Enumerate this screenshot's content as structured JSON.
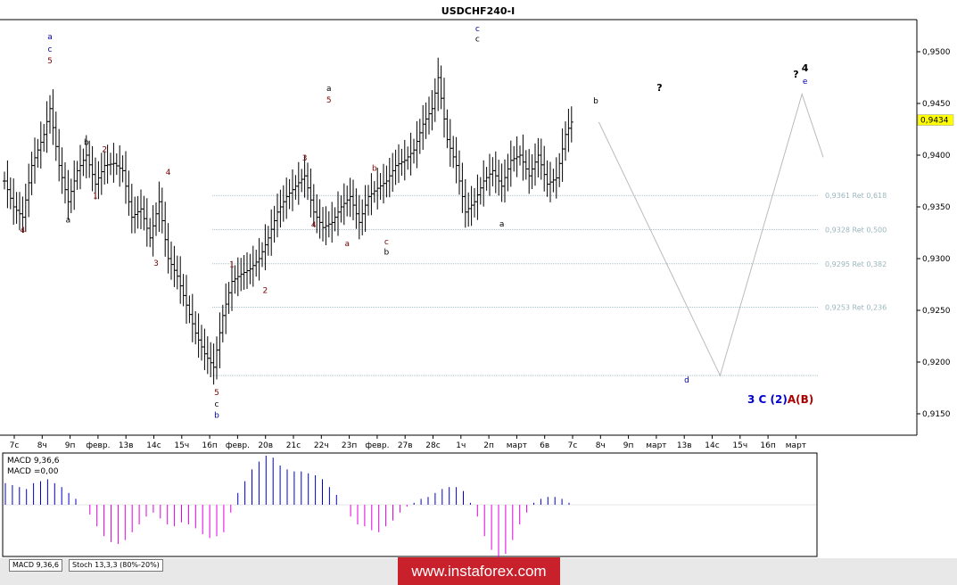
{
  "chart_data": {
    "type": "candlestick",
    "title": "USDCHF240-I",
    "price_axis": {
      "range": [
        0.9118,
        0.9534
      ],
      "ticks": [
        "0,9500",
        "0,9450",
        "0,9400",
        "0,9350",
        "0,9300",
        "0,9250",
        "0,9200",
        "0,9150"
      ],
      "tick_values": [
        0.95,
        0.945,
        0.94,
        0.935,
        0.93,
        0.925,
        0.92,
        0.915
      ],
      "current_price_label": "0,9434",
      "current_price": 0.9434
    },
    "time_axis": {
      "labels": [
        "7с",
        "8ч",
        "9п",
        "февр.",
        "13в",
        "14с",
        "15ч",
        "16п",
        "февр.",
        "20в",
        "21с",
        "22ч",
        "23п",
        "февр.",
        "27в",
        "28с",
        "1ч",
        "2п",
        "март",
        "6в",
        "7с",
        "8ч",
        "9п",
        "март",
        "13в",
        "14с",
        "15ч",
        "16п",
        "март"
      ]
    },
    "fib_levels": [
      {
        "value": 0.9361,
        "label": "0,9361 Ret 0,618"
      },
      {
        "value": 0.9328,
        "label": "0,9328 Ret 0,500"
      },
      {
        "value": 0.9295,
        "label": "0,9295 Ret 0,382"
      },
      {
        "value": 0.9253,
        "label": "0,9253 Ret 0,236"
      },
      {
        "value": 0.9187,
        "label": ""
      }
    ],
    "price_path": [
      [
        0,
        0.9375
      ],
      [
        3,
        0.935
      ],
      [
        6,
        0.934
      ],
      [
        9,
        0.939
      ],
      [
        13,
        0.942
      ],
      [
        15,
        0.9445
      ],
      [
        18,
        0.939
      ],
      [
        21,
        0.9355
      ],
      [
        24,
        0.9385
      ],
      [
        27,
        0.94
      ],
      [
        30,
        0.9372
      ],
      [
        33,
        0.939
      ],
      [
        36,
        0.9392
      ],
      [
        39,
        0.9385
      ],
      [
        42,
        0.934
      ],
      [
        45,
        0.9348
      ],
      [
        48,
        0.932
      ],
      [
        51,
        0.9355
      ],
      [
        54,
        0.93
      ],
      [
        57,
        0.9283
      ],
      [
        60,
        0.9255
      ],
      [
        63,
        0.9228
      ],
      [
        66,
        0.9208
      ],
      [
        69,
        0.9195
      ],
      [
        72,
        0.9245
      ],
      [
        75,
        0.9278
      ],
      [
        78,
        0.9285
      ],
      [
        81,
        0.929
      ],
      [
        84,
        0.93
      ],
      [
        87,
        0.932
      ],
      [
        90,
        0.9345
      ],
      [
        93,
        0.936
      ],
      [
        96,
        0.937
      ],
      [
        99,
        0.938
      ],
      [
        102,
        0.9345
      ],
      [
        105,
        0.933
      ],
      [
        108,
        0.9335
      ],
      [
        111,
        0.935
      ],
      [
        114,
        0.936
      ],
      [
        117,
        0.9335
      ],
      [
        120,
        0.936
      ],
      [
        123,
        0.9368
      ],
      [
        126,
        0.9375
      ],
      [
        129,
        0.939
      ],
      [
        132,
        0.9395
      ],
      [
        135,
        0.9405
      ],
      [
        138,
        0.943
      ],
      [
        141,
        0.9445
      ],
      [
        143,
        0.9475
      ],
      [
        146,
        0.9415
      ],
      [
        149,
        0.939
      ],
      [
        152,
        0.9345
      ],
      [
        155,
        0.9355
      ],
      [
        158,
        0.9375
      ],
      [
        161,
        0.9385
      ],
      [
        164,
        0.937
      ],
      [
        167,
        0.9395
      ],
      [
        170,
        0.94
      ],
      [
        173,
        0.938
      ],
      [
        176,
        0.94
      ],
      [
        179,
        0.9372
      ],
      [
        182,
        0.9378
      ],
      [
        185,
        0.942
      ],
      [
        187,
        0.9432
      ]
    ],
    "macd": {
      "label_signal": "MACD 9,36,6",
      "label_value": "MACD =0,00",
      "values": [
        0.55,
        0.5,
        0.45,
        0.4,
        0.55,
        0.6,
        0.65,
        0.55,
        0.45,
        0.3,
        0.15,
        0,
        -0.25,
        -0.55,
        -0.8,
        -0.95,
        -1.0,
        -0.9,
        -0.7,
        -0.5,
        -0.3,
        -0.2,
        -0.35,
        -0.5,
        -0.55,
        -0.45,
        -0.5,
        -0.6,
        -0.75,
        -0.85,
        -0.8,
        -0.7,
        -0.2,
        0.3,
        0.6,
        0.9,
        1.1,
        1.25,
        1.2,
        1.0,
        0.9,
        0.85,
        0.85,
        0.8,
        0.75,
        0.65,
        0.45,
        0.25,
        0.0,
        -0.3,
        -0.5,
        -0.55,
        -0.65,
        -0.7,
        -0.55,
        -0.4,
        -0.2,
        -0.05,
        0.05,
        0.15,
        0.2,
        0.3,
        0.4,
        0.45,
        0.45,
        0.35,
        0.05,
        -0.3,
        -0.8,
        -1.15,
        -1.35,
        -1.25,
        -0.9,
        -0.5,
        -0.2,
        0.05,
        0.15,
        0.2,
        0.2,
        0.15,
        0.05,
        0.0
      ]
    },
    "indicator_tabs": [
      "MACD 9,36,6",
      "Stoch 13,3,3 (80%-20%)"
    ],
    "wave_labels": [
      {
        "text": "a",
        "bar": 15,
        "price": 0.9512,
        "color": "#0000aa"
      },
      {
        "text": "c",
        "bar": 15,
        "price": 0.95,
        "color": "#0000aa"
      },
      {
        "text": "5",
        "bar": 15,
        "price": 0.9489,
        "color": "#7a0000"
      },
      {
        "text": "4",
        "bar": 6,
        "price": 0.9325,
        "color": "#7a0000"
      },
      {
        "text": "a",
        "bar": 21,
        "price": 0.9335,
        "color": "#000000"
      },
      {
        "text": "b",
        "bar": 27,
        "price": 0.941,
        "color": "#000000"
      },
      {
        "text": "2",
        "bar": 33,
        "price": 0.9403,
        "color": "#7a0000"
      },
      {
        "text": "1",
        "bar": 30,
        "price": 0.9358,
        "color": "#7a0000"
      },
      {
        "text": "4",
        "bar": 54,
        "price": 0.9381,
        "color": "#7a0000"
      },
      {
        "text": "3",
        "bar": 50,
        "price": 0.9293,
        "color": "#7a0000"
      },
      {
        "text": "5",
        "bar": 70,
        "price": 0.9168,
        "color": "#7a0000"
      },
      {
        "text": "c",
        "bar": 70,
        "price": 0.9157,
        "color": "#000000"
      },
      {
        "text": "b",
        "bar": 70,
        "price": 0.9146,
        "color": "#0000aa"
      },
      {
        "text": "1",
        "bar": 75,
        "price": 0.9292,
        "color": "#7a0000"
      },
      {
        "text": "2",
        "bar": 86,
        "price": 0.9267,
        "color": "#7a0000"
      },
      {
        "text": "3",
        "bar": 99,
        "price": 0.9395,
        "color": "#7a0000"
      },
      {
        "text": "4",
        "bar": 102,
        "price": 0.933,
        "color": "#7a0000"
      },
      {
        "text": "a",
        "bar": 107,
        "price": 0.9462,
        "color": "#000000"
      },
      {
        "text": "5",
        "bar": 107,
        "price": 0.9451,
        "color": "#7a0000"
      },
      {
        "text": "a",
        "bar": 113,
        "price": 0.9312,
        "color": "#7a0000"
      },
      {
        "text": "b",
        "bar": 122,
        "price": 0.9385,
        "color": "#7a0000"
      },
      {
        "text": "c",
        "bar": 126,
        "price": 0.9314,
        "color": "#7a0000"
      },
      {
        "text": "b",
        "bar": 126,
        "price": 0.9304,
        "color": "#000000"
      },
      {
        "text": "c",
        "bar": 156,
        "price": 0.952,
        "color": "#0000aa"
      },
      {
        "text": "c",
        "bar": 156,
        "price": 0.951,
        "color": "#000000"
      },
      {
        "text": "a",
        "bar": 164,
        "price": 0.9331,
        "color": "#000000"
      },
      {
        "text": "b",
        "bar": 195,
        "price": 0.945,
        "color": "#000000"
      }
    ],
    "projection_path": [
      [
        196,
        0.9432
      ],
      [
        236,
        0.9187
      ],
      [
        263,
        0.9459
      ],
      [
        270,
        0.9398
      ]
    ],
    "projection_labels": [
      {
        "text": "?",
        "bar": 216,
        "price": 0.9462,
        "color": "#000000"
      },
      {
        "text": "d",
        "bar": 225,
        "price": 0.918,
        "color": "#0000aa"
      },
      {
        "text": "?",
        "bar": 261,
        "price": 0.9475,
        "color": "#000000"
      },
      {
        "text": "4",
        "bar": 264,
        "price": 0.9481,
        "color": "#000000"
      },
      {
        "text": "e",
        "bar": 264,
        "price": 0.9469,
        "color": "#0000aa"
      }
    ],
    "wave_count": [
      {
        "text": "3",
        "color": "#0000cc"
      },
      {
        "text": "C",
        "color": "#0000cc"
      },
      {
        "text": "(2)",
        "color": "#0000cc"
      },
      {
        "text": "A",
        "color": "#aa0000"
      },
      {
        "text": "(B)",
        "color": "#aa0000"
      }
    ]
  },
  "watermark": "www.instaforex.com"
}
